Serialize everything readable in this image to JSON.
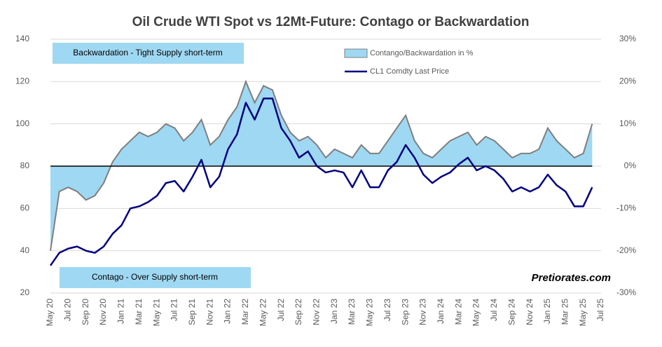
{
  "chart_data": {
    "type": "line_area",
    "title": "Oil Crude WTI Spot vs 12Mt-Future: Contago or Backwardation",
    "categories": [
      "May 20",
      null,
      "Jul 20",
      null,
      "Sep 20",
      null,
      "Nov 20",
      null,
      "Jan 21",
      null,
      "Mar 21",
      null,
      "May 21",
      null,
      "Jul 21",
      null,
      "Sep 21",
      null,
      "Nov 21",
      null,
      "Jan 22",
      null,
      "Mar 22",
      null,
      "May 22",
      null,
      "Jul 22",
      null,
      "Sep 22",
      null,
      "Nov 22",
      null,
      "Jan 23",
      null,
      "Mar 23",
      null,
      "May 23",
      null,
      "Jul 23",
      null,
      "Sep 23",
      null,
      "Nov 23",
      null,
      "Jan 24",
      null,
      "Mar 24",
      null,
      "May 24",
      null,
      "Jul 24",
      null,
      "Sep 24",
      null,
      "Nov 24",
      null,
      "Jan 25",
      null,
      "Mar 25",
      null,
      "May 25",
      null,
      "Jul 25"
    ],
    "series": [
      {
        "name": "Contango/Backwardation in %",
        "kind": "area",
        "axis": "y2",
        "color": "#9fd8f2",
        "edge_color": "#7f7f7f",
        "values": [
          -20,
          -6,
          -5,
          -6,
          -8,
          -7,
          -4,
          1,
          4,
          6,
          8,
          7,
          8,
          10,
          9,
          6,
          8,
          11,
          5,
          7,
          11,
          14,
          20,
          15,
          19,
          18,
          12,
          8,
          6,
          7,
          5,
          2,
          4,
          3,
          2,
          5,
          3,
          3,
          6,
          9,
          12,
          6,
          3,
          2,
          4,
          6,
          7,
          8,
          5,
          7,
          6,
          4,
          2,
          3,
          3,
          4,
          9,
          6,
          4,
          2,
          3,
          10,
          null
        ]
      },
      {
        "name": "CL1 Comdty Last Price",
        "kind": "line",
        "axis": "y",
        "color": "#000080",
        "values": [
          33,
          39,
          41,
          42,
          40,
          39,
          42,
          48,
          52,
          60,
          61,
          63,
          66,
          72,
          73,
          68,
          75,
          83,
          70,
          75,
          88,
          95,
          110,
          102,
          112,
          112,
          98,
          92,
          84,
          87,
          80,
          77,
          78,
          77,
          70,
          78,
          70,
          70,
          78,
          82,
          90,
          84,
          76,
          72,
          75,
          77,
          81,
          84,
          78,
          80,
          78,
          74,
          68,
          70,
          68,
          70,
          76,
          71,
          68,
          61,
          61,
          70,
          null
        ]
      }
    ],
    "ylim": [
      20,
      140
    ],
    "yticks": [
      20,
      40,
      60,
      80,
      100,
      120,
      140
    ],
    "y2lim": [
      -30,
      30
    ],
    "y2ticks": [
      {
        "value": -30,
        "label": "-30%"
      },
      {
        "value": -20,
        "label": "-20%"
      },
      {
        "value": -10,
        "label": "-10%"
      },
      {
        "value": 0,
        "label": "0%"
      },
      {
        "value": 10,
        "label": "10%"
      },
      {
        "value": 20,
        "label": "20%"
      },
      {
        "value": 30,
        "label": "30%"
      }
    ],
    "grid": true,
    "legend": "upper center",
    "annotations": [
      "Backwardation - Tight Supply short-term",
      "Contago - Over Supply short-term"
    ],
    "watermark": "Pretiorates.com"
  }
}
